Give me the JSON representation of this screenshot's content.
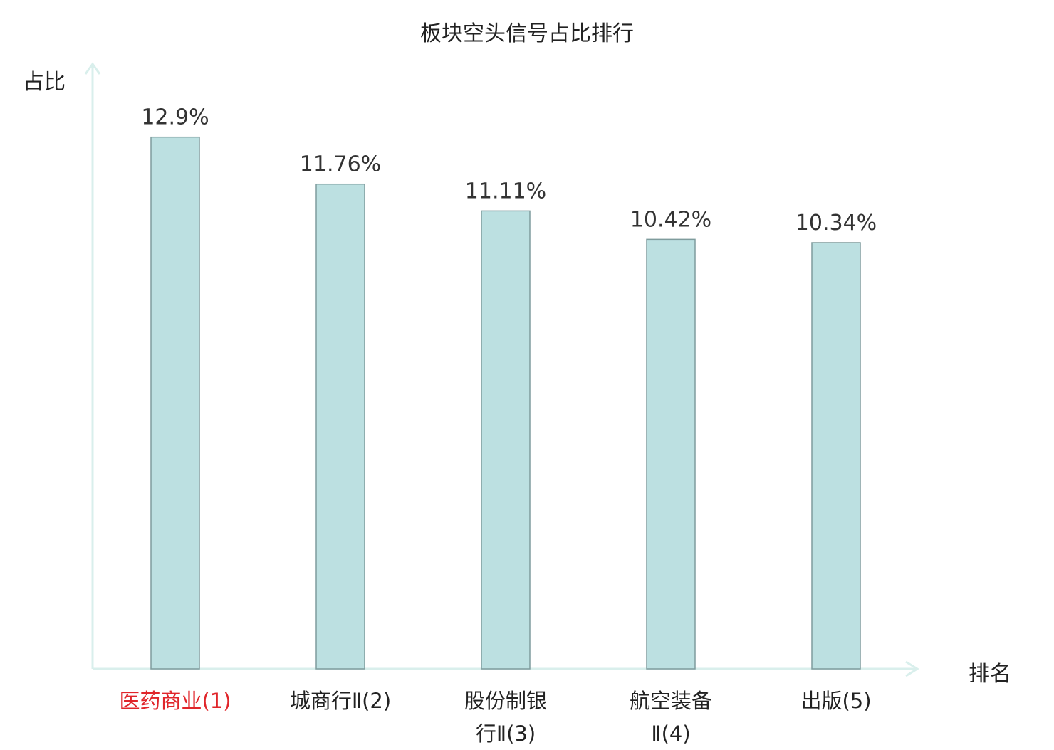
{
  "chart_data": {
    "type": "bar",
    "title": "板块空头信号占比排行",
    "ylabel": "占比",
    "xlabel": "排名",
    "categories": [
      "医药商业(1)",
      "城商行Ⅱ(2)",
      "股份制银行Ⅱ(3)",
      "航空装备Ⅱ(4)",
      "出版(5)"
    ],
    "category_lines": [
      [
        "医药商业(1)"
      ],
      [
        "城商行Ⅱ(2)"
      ],
      [
        "股份制银",
        "行Ⅱ(3)"
      ],
      [
        "航空装备",
        "Ⅱ(4)"
      ],
      [
        "出版(5)"
      ]
    ],
    "values": [
      12.9,
      11.76,
      11.11,
      10.42,
      10.34
    ],
    "value_labels": [
      "12.9%",
      "11.76%",
      "11.11%",
      "10.42%",
      "10.34%"
    ],
    "ylim": [
      0,
      14.5
    ],
    "grid": false,
    "highlight_index": 0,
    "colors": {
      "bar_fill": "#bce0e1",
      "bar_stroke": "#7f9c9d",
      "axis": "#d9efec",
      "highlight_text": "#e0252a"
    }
  }
}
